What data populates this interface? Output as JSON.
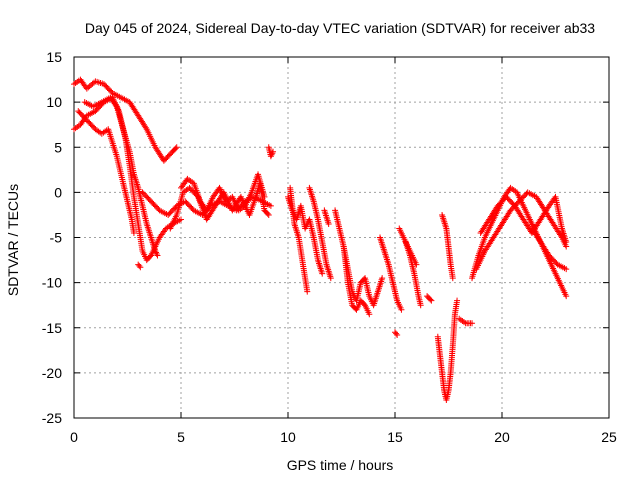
{
  "chart_data": {
    "type": "scatter",
    "title": "Day 045 of 2024, Sidereal Day-to-day VTEC variation (SDTVAR) for receiver ab33",
    "xlabel": "GPS time / hours",
    "ylabel": "SDTVAR / TECUs",
    "xlim": [
      0,
      25
    ],
    "ylim": [
      -25,
      15
    ],
    "xticks": [
      0,
      5,
      10,
      15,
      20,
      25
    ],
    "yticks": [
      -25,
      -20,
      -15,
      -10,
      -5,
      0,
      5,
      10,
      15
    ],
    "grid": true,
    "marker": "+",
    "series": [
      {
        "name": "SDTVAR",
        "color": "#ff0000",
        "segments": [
          [
            [
              0.0,
              12.0
            ],
            [
              0.3,
              12.5
            ],
            [
              0.6,
              11.5
            ],
            [
              1.0,
              12.3
            ],
            [
              1.4,
              12.0
            ],
            [
              1.8,
              11.0
            ],
            [
              2.2,
              10.5
            ],
            [
              2.6,
              10.0
            ],
            [
              3.0,
              8.5
            ],
            [
              3.4,
              7.0
            ],
            [
              3.8,
              5.0
            ],
            [
              4.2,
              3.5
            ],
            [
              4.6,
              4.5
            ],
            [
              4.8,
              5.0
            ]
          ],
          [
            [
              0.0,
              7.0
            ],
            [
              0.3,
              7.5
            ],
            [
              0.6,
              8.5
            ],
            [
              1.0,
              9.0
            ],
            [
              1.4,
              10.0
            ],
            [
              1.8,
              10.5
            ],
            [
              2.1,
              9.0
            ],
            [
              2.4,
              6.0
            ],
            [
              2.6,
              3.0
            ],
            [
              2.8,
              -0.5
            ],
            [
              3.0,
              -3.5
            ],
            [
              3.2,
              -6.5
            ],
            [
              3.4,
              -7.5
            ],
            [
              3.6,
              -7.0
            ],
            [
              3.8,
              -6.0
            ],
            [
              4.0,
              -5.0
            ],
            [
              4.3,
              -4.0
            ],
            [
              4.6,
              -3.5
            ],
            [
              5.0,
              -3.0
            ]
          ],
          [
            [
              0.2,
              9.0
            ],
            [
              0.6,
              8.0
            ],
            [
              1.0,
              7.0
            ],
            [
              1.3,
              6.5
            ],
            [
              1.6,
              7.0
            ],
            [
              2.0,
              4.0
            ],
            [
              2.3,
              1.0
            ],
            [
              2.5,
              -1.0
            ],
            [
              2.7,
              -3.0
            ],
            [
              2.8,
              -4.5
            ]
          ],
          [
            [
              0.5,
              10.0
            ],
            [
              0.9,
              9.5
            ],
            [
              1.3,
              10.0
            ],
            [
              1.7,
              10.5
            ],
            [
              2.0,
              9.5
            ],
            [
              2.3,
              7.0
            ],
            [
              2.6,
              4.5
            ],
            [
              2.8,
              2.0
            ],
            [
              3.0,
              0.5
            ],
            [
              3.2,
              -1.5
            ],
            [
              3.4,
              -3.5
            ],
            [
              3.6,
              -5.0
            ],
            [
              3.8,
              -6.5
            ],
            [
              3.9,
              -7.0
            ]
          ],
          [
            [
              3.0,
              -8.0
            ],
            [
              3.1,
              -8.3
            ]
          ],
          [
            [
              3.2,
              0.0
            ],
            [
              3.6,
              -1.0
            ],
            [
              4.0,
              -2.0
            ],
            [
              4.4,
              -2.5
            ],
            [
              4.8,
              -1.5
            ],
            [
              5.2,
              -1.0
            ],
            [
              5.6,
              -2.0
            ],
            [
              6.0,
              -2.5
            ],
            [
              6.4,
              -1.5
            ],
            [
              6.8,
              -1.0
            ],
            [
              7.2,
              -1.5
            ],
            [
              7.6,
              -2.0
            ],
            [
              8.0,
              -1.0
            ],
            [
              8.4,
              -0.5
            ],
            [
              8.8,
              -1.0
            ],
            [
              9.2,
              -1.5
            ]
          ],
          [
            [
              4.5,
              -4.0
            ],
            [
              4.8,
              -2.5
            ],
            [
              5.1,
              0.0
            ],
            [
              5.4,
              0.5
            ],
            [
              5.8,
              -0.5
            ],
            [
              6.2,
              -3.0
            ],
            [
              6.6,
              -1.5
            ],
            [
              7.0,
              0.0
            ],
            [
              7.4,
              -2.0
            ],
            [
              7.8,
              -0.5
            ],
            [
              8.2,
              -2.5
            ],
            [
              8.5,
              -0.5
            ],
            [
              8.7,
              1.0
            ],
            [
              8.9,
              -2.0
            ],
            [
              9.1,
              -2.5
            ]
          ],
          [
            [
              5.0,
              0.5
            ],
            [
              5.3,
              1.5
            ],
            [
              5.6,
              1.0
            ],
            [
              5.9,
              -1.0
            ],
            [
              6.2,
              -2.0
            ],
            [
              6.5,
              -0.5
            ],
            [
              6.8,
              0.5
            ],
            [
              7.1,
              -1.0
            ],
            [
              7.4,
              -0.5
            ],
            [
              7.7,
              -2.0
            ],
            [
              8.0,
              -1.5
            ],
            [
              8.3,
              0.0
            ],
            [
              8.6,
              2.0
            ],
            [
              8.9,
              -0.5
            ]
          ],
          [
            [
              9.1,
              5.0
            ],
            [
              9.2,
              4.0
            ],
            [
              9.3,
              4.5
            ]
          ],
          [
            [
              10.0,
              -0.5
            ],
            [
              10.2,
              -2.0
            ],
            [
              10.4,
              -3.0
            ],
            [
              10.6,
              -1.5
            ],
            [
              10.8,
              -4.0
            ],
            [
              11.0,
              -3.0
            ],
            [
              11.2,
              -5.0
            ],
            [
              11.4,
              -7.5
            ],
            [
              11.6,
              -9.0
            ]
          ],
          [
            [
              10.1,
              0.5
            ],
            [
              10.3,
              -3.5
            ],
            [
              10.5,
              -5.0
            ],
            [
              10.7,
              -8.0
            ],
            [
              10.8,
              -9.5
            ],
            [
              10.9,
              -11.0
            ]
          ],
          [
            [
              11.0,
              0.5
            ],
            [
              11.2,
              -1.0
            ],
            [
              11.4,
              -3.0
            ],
            [
              11.6,
              -5.5
            ],
            [
              11.8,
              -8.0
            ],
            [
              12.0,
              -9.5
            ]
          ],
          [
            [
              11.7,
              -2.0
            ],
            [
              11.9,
              -3.5
            ]
          ],
          [
            [
              12.2,
              -2.0
            ],
            [
              12.4,
              -4.0
            ],
            [
              12.6,
              -6.0
            ],
            [
              12.8,
              -8.5
            ],
            [
              13.0,
              -11.0
            ],
            [
              13.2,
              -12.0
            ],
            [
              13.4,
              -10.0
            ],
            [
              13.6,
              -9.5
            ],
            [
              13.8,
              -11.5
            ],
            [
              14.0,
              -12.5
            ],
            [
              14.2,
              -11.0
            ],
            [
              14.4,
              -9.5
            ]
          ],
          [
            [
              12.6,
              -6.0
            ],
            [
              12.8,
              -10.0
            ],
            [
              13.0,
              -12.5
            ],
            [
              13.2,
              -13.0
            ],
            [
              13.4,
              -12.0
            ],
            [
              13.6,
              -12.5
            ],
            [
              13.8,
              -13.5
            ]
          ],
          [
            [
              14.3,
              -5.0
            ],
            [
              14.5,
              -6.5
            ],
            [
              14.7,
              -8.0
            ],
            [
              14.9,
              -10.0
            ],
            [
              15.1,
              -12.0
            ],
            [
              15.3,
              -13.0
            ]
          ],
          [
            [
              15.0,
              -15.5
            ],
            [
              15.1,
              -15.8
            ]
          ],
          [
            [
              15.2,
              -4.0
            ],
            [
              15.4,
              -5.0
            ],
            [
              15.6,
              -6.0
            ],
            [
              15.8,
              -7.0
            ],
            [
              16.0,
              -8.0
            ]
          ],
          [
            [
              15.5,
              -5.5
            ],
            [
              15.7,
              -7.0
            ],
            [
              15.9,
              -9.0
            ],
            [
              16.1,
              -11.5
            ],
            [
              16.2,
              -12.5
            ]
          ],
          [
            [
              16.5,
              -11.5
            ],
            [
              16.7,
              -12.0
            ]
          ],
          [
            [
              17.2,
              -2.5
            ],
            [
              17.4,
              -4.0
            ],
            [
              17.5,
              -6.0
            ],
            [
              17.6,
              -8.0
            ],
            [
              17.7,
              -9.5
            ]
          ],
          [
            [
              17.0,
              -16.0
            ],
            [
              17.1,
              -18.0
            ],
            [
              17.2,
              -20.0
            ],
            [
              17.3,
              -22.0
            ],
            [
              17.4,
              -23.0
            ],
            [
              17.5,
              -22.0
            ],
            [
              17.6,
              -20.0
            ],
            [
              17.7,
              -17.0
            ],
            [
              17.8,
              -13.5
            ],
            [
              17.9,
              -12.0
            ]
          ],
          [
            [
              18.0,
              -14.0
            ],
            [
              18.3,
              -14.5
            ],
            [
              18.6,
              -14.5
            ]
          ],
          [
            [
              18.6,
              -9.5
            ],
            [
              18.9,
              -7.0
            ],
            [
              19.2,
              -5.0
            ],
            [
              19.5,
              -3.5
            ],
            [
              19.8,
              -2.0
            ],
            [
              20.1,
              -0.5
            ],
            [
              20.4,
              0.5
            ],
            [
              20.7,
              0.0
            ],
            [
              21.0,
              -1.5
            ],
            [
              21.3,
              -3.0
            ],
            [
              21.6,
              -4.5
            ],
            [
              21.9,
              -6.0
            ],
            [
              22.2,
              -7.5
            ],
            [
              22.5,
              -9.0
            ],
            [
              22.8,
              -10.5
            ],
            [
              23.0,
              -11.5
            ]
          ],
          [
            [
              18.8,
              -8.5
            ],
            [
              19.2,
              -6.5
            ],
            [
              19.6,
              -5.0
            ],
            [
              20.0,
              -3.5
            ],
            [
              20.4,
              -2.0
            ],
            [
              20.8,
              -1.0
            ],
            [
              21.2,
              0.0
            ],
            [
              21.6,
              -0.5
            ],
            [
              22.0,
              -2.0
            ],
            [
              22.4,
              -3.5
            ],
            [
              22.8,
              -5.0
            ],
            [
              23.0,
              -6.0
            ]
          ],
          [
            [
              19.0,
              -4.5
            ],
            [
              19.4,
              -3.0
            ],
            [
              19.8,
              -1.5
            ],
            [
              20.2,
              -0.5
            ],
            [
              20.6,
              -1.5
            ],
            [
              21.0,
              -3.0
            ],
            [
              21.4,
              -4.5
            ],
            [
              21.8,
              -3.0
            ],
            [
              22.2,
              -1.5
            ],
            [
              22.5,
              -0.5
            ],
            [
              22.8,
              -4.0
            ],
            [
              23.0,
              -5.5
            ]
          ],
          [
            [
              21.4,
              -4.0
            ],
            [
              21.8,
              -5.5
            ],
            [
              22.2,
              -7.0
            ],
            [
              22.6,
              -8.0
            ],
            [
              23.0,
              -8.5
            ]
          ]
        ]
      }
    ]
  }
}
